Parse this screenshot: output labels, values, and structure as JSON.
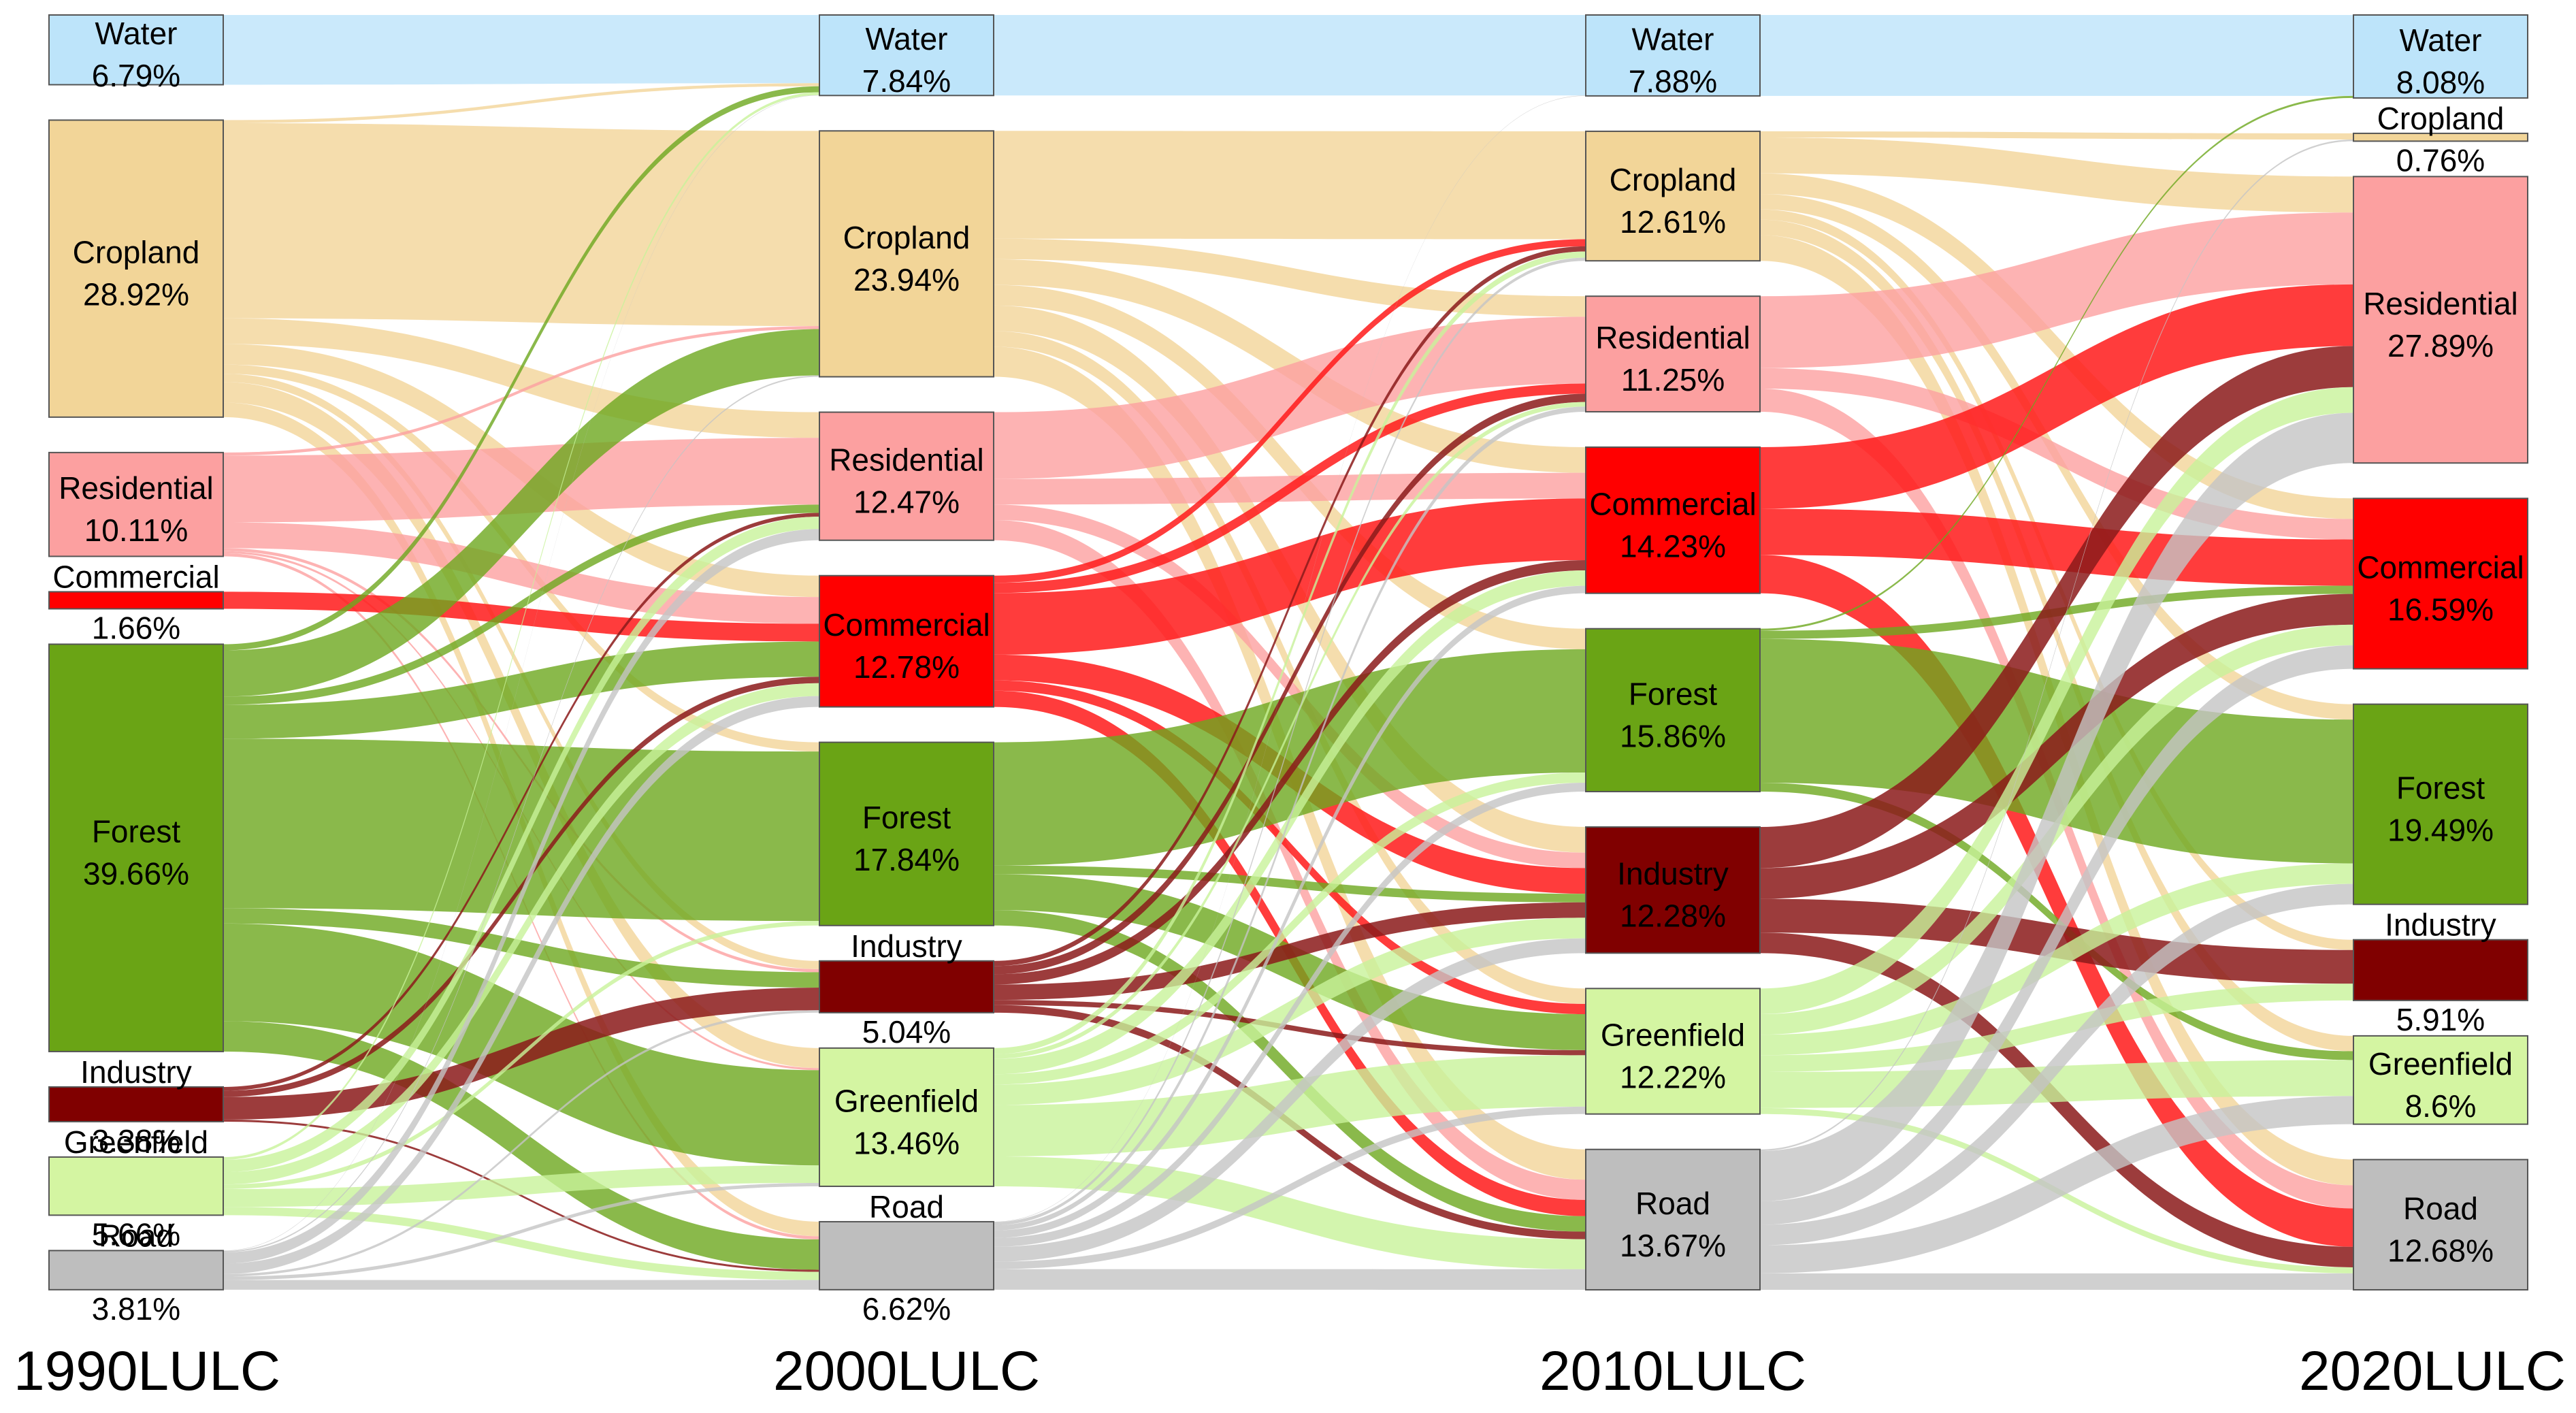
{
  "chart_data": {
    "type": "sankey",
    "title": "",
    "categories": [
      "Water",
      "Cropland",
      "Residential",
      "Commercial",
      "Forest",
      "Industry",
      "Greenfield",
      "Road"
    ],
    "colors": {
      "Water": "#BDE4FA",
      "Cropland": "#F2D598",
      "Residential": "#FCA0A0",
      "Commercial": "#FF0000",
      "Forest": "#6AA415",
      "Industry": "#800000",
      "Greenfield": "#D4F5A2",
      "Road": "#BEBEBE"
    },
    "link_colors": {
      "Water": "#BDE4FA",
      "Cropland": "#F2D598",
      "Residential": "#FCA0A0",
      "Commercial": "#FF1A1A",
      "Forest": "#6DA81E",
      "Industry": "#8B1A1A",
      "Greenfield": "#C8F29A",
      "Road": "#C4C4C4"
    },
    "years": [
      {
        "label": "1990LULC",
        "values": [
          {
            "name": "Water",
            "pct_label": "6.79%",
            "value": 6.79
          },
          {
            "name": "Cropland",
            "pct_label": "28.92%",
            "value": 28.92
          },
          {
            "name": "Residential",
            "pct_label": "10.11%",
            "value": 10.11
          },
          {
            "name": "Commercial",
            "pct_label": "1.66%",
            "value": 1.66
          },
          {
            "name": "Forest",
            "pct_label": "39.66%",
            "value": 39.66
          },
          {
            "name": "Industry",
            "pct_label": "3.38%",
            "value": 3.38
          },
          {
            "name": "Greenfield",
            "pct_label": "5.66%",
            "value": 5.66
          },
          {
            "name": "Road",
            "pct_label": "3.81%",
            "value": 3.81
          }
        ]
      },
      {
        "label": "2000LULC",
        "values": [
          {
            "name": "Water",
            "pct_label": "7.84%",
            "value": 7.84
          },
          {
            "name": "Cropland",
            "pct_label": "23.94%",
            "value": 23.94
          },
          {
            "name": "Residential",
            "pct_label": "12.47%",
            "value": 12.47
          },
          {
            "name": "Commercial",
            "pct_label": "12.78%",
            "value": 12.78
          },
          {
            "name": "Forest",
            "pct_label": "17.84%",
            "value": 17.84
          },
          {
            "name": "Industry",
            "pct_label": "5.04%",
            "value": 5.04
          },
          {
            "name": "Greenfield",
            "pct_label": "13.46%",
            "value": 13.46
          },
          {
            "name": "Road",
            "pct_label": "6.62%",
            "value": 6.62
          }
        ]
      },
      {
        "label": "2010LULC",
        "values": [
          {
            "name": "Water",
            "pct_label": "7.88%",
            "value": 7.88
          },
          {
            "name": "Cropland",
            "pct_label": "12.61%",
            "value": 12.61
          },
          {
            "name": "Residential",
            "pct_label": "11.25%",
            "value": 11.25
          },
          {
            "name": "Commercial",
            "pct_label": "14.23%",
            "value": 14.23
          },
          {
            "name": "Forest",
            "pct_label": "15.86%",
            "value": 15.86
          },
          {
            "name": "Industry",
            "pct_label": "12.28%",
            "value": 12.28
          },
          {
            "name": "Greenfield",
            "pct_label": "12.22%",
            "value": 12.22
          },
          {
            "name": "Road",
            "pct_label": "13.67%",
            "value": 13.67
          }
        ]
      },
      {
        "label": "2020LULC",
        "values": [
          {
            "name": "Water",
            "pct_label": "8.08%",
            "value": 8.08
          },
          {
            "name": "Cropland",
            "pct_label": "0.76%",
            "value": 0.76
          },
          {
            "name": "Residential",
            "pct_label": "27.89%",
            "value": 27.89
          },
          {
            "name": "Commercial",
            "pct_label": "16.59%",
            "value": 16.59
          },
          {
            "name": "Forest",
            "pct_label": "19.49%",
            "value": 19.49
          },
          {
            "name": "Industry",
            "pct_label": "5.91%",
            "value": 5.91
          },
          {
            "name": "Greenfield",
            "pct_label": "8.6%",
            "value": 8.6
          },
          {
            "name": "Road",
            "pct_label": "12.68%",
            "value": 12.68
          }
        ]
      }
    ],
    "transitions": [
      {
        "from": "1990LULC",
        "to": "2000LULC",
        "flows": [
          [
            "Water",
            "Water",
            6.7
          ],
          [
            "Cropland",
            "Water",
            0.3
          ],
          [
            "Cropland",
            "Cropland",
            19.0
          ],
          [
            "Cropland",
            "Residential",
            2.5
          ],
          [
            "Cropland",
            "Commercial",
            2.0
          ],
          [
            "Cropland",
            "Forest",
            0.9
          ],
          [
            "Cropland",
            "Industry",
            0.8
          ],
          [
            "Cropland",
            "Greenfield",
            2.0
          ],
          [
            "Cropland",
            "Road",
            1.42
          ],
          [
            "Residential",
            "Residential",
            6.5
          ],
          [
            "Residential",
            "Commercial",
            2.5
          ],
          [
            "Residential",
            "Cropland",
            0.3
          ],
          [
            "Residential",
            "Industry",
            0.3
          ],
          [
            "Residential",
            "Road",
            0.3
          ],
          [
            "Residential",
            "Greenfield",
            0.21
          ],
          [
            "Commercial",
            "Commercial",
            1.66
          ],
          [
            "Forest",
            "Water",
            0.6
          ],
          [
            "Forest",
            "Cropland",
            4.5
          ],
          [
            "Forest",
            "Residential",
            0.8
          ],
          [
            "Forest",
            "Commercial",
            3.3
          ],
          [
            "Forest",
            "Forest",
            16.5
          ],
          [
            "Forest",
            "Industry",
            1.5
          ],
          [
            "Forest",
            "Greenfield",
            9.5
          ],
          [
            "Forest",
            "Road",
            2.96
          ],
          [
            "Industry",
            "Industry",
            2.2
          ],
          [
            "Industry",
            "Commercial",
            0.6
          ],
          [
            "Industry",
            "Residential",
            0.38
          ],
          [
            "Industry",
            "Road",
            0.2
          ],
          [
            "Greenfield",
            "Greenfield",
            1.75
          ],
          [
            "Greenfield",
            "Commercial",
            1.2
          ],
          [
            "Greenfield",
            "Residential",
            1.2
          ],
          [
            "Greenfield",
            "Road",
            0.8
          ],
          [
            "Greenfield",
            "Forest",
            0.44
          ],
          [
            "Greenfield",
            "Water",
            0.27
          ],
          [
            "Road",
            "Road",
            0.94
          ],
          [
            "Road",
            "Residential",
            1.09
          ],
          [
            "Road",
            "Commercial",
            1.02
          ],
          [
            "Road",
            "Industry",
            0.24
          ],
          [
            "Road",
            "Cropland",
            0.14
          ],
          [
            "Road",
            "Water",
            0.04
          ],
          [
            "Road",
            "Forest",
            0.0
          ],
          [
            "Road",
            "Greenfield",
            0.34
          ]
        ]
      },
      {
        "from": "2000LULC",
        "to": "2010LULC",
        "flows": [
          [
            "Water",
            "Water",
            7.84
          ],
          [
            "Cropland",
            "Cropland",
            10.5
          ],
          [
            "Cropland",
            "Residential",
            2.0
          ],
          [
            "Cropland",
            "Commercial",
            2.5
          ],
          [
            "Cropland",
            "Forest",
            2.0
          ],
          [
            "Cropland",
            "Industry",
            2.5
          ],
          [
            "Cropland",
            "Greenfield",
            1.5
          ],
          [
            "Cropland",
            "Road",
            2.94
          ],
          [
            "Residential",
            "Residential",
            6.5
          ],
          [
            "Residential",
            "Commercial",
            2.5
          ],
          [
            "Residential",
            "Industry",
            1.5
          ],
          [
            "Residential",
            "Road",
            1.97
          ],
          [
            "Commercial",
            "Cropland",
            0.7
          ],
          [
            "Commercial",
            "Residential",
            1.0
          ],
          [
            "Commercial",
            "Commercial",
            6.0
          ],
          [
            "Commercial",
            "Industry",
            2.5
          ],
          [
            "Commercial",
            "Greenfield",
            1.0
          ],
          [
            "Commercial",
            "Road",
            1.58
          ],
          [
            "Forest",
            "Forest",
            12.0
          ],
          [
            "Forest",
            "Greenfield",
            3.5
          ],
          [
            "Forest",
            "Road",
            1.5
          ],
          [
            "Forest",
            "Industry",
            0.84
          ],
          [
            "Industry",
            "Cropland",
            0.5
          ],
          [
            "Industry",
            "Residential",
            0.8
          ],
          [
            "Industry",
            "Commercial",
            1.0
          ],
          [
            "Industry",
            "Industry",
            1.5
          ],
          [
            "Industry",
            "Greenfield",
            0.5
          ],
          [
            "Industry",
            "Road",
            0.74
          ],
          [
            "Greenfield",
            "Cropland",
            0.6
          ],
          [
            "Greenfield",
            "Residential",
            0.45
          ],
          [
            "Greenfield",
            "Commercial",
            1.5
          ],
          [
            "Greenfield",
            "Forest",
            1.0
          ],
          [
            "Greenfield",
            "Industry",
            2.0
          ],
          [
            "Greenfield",
            "Greenfield",
            5.0
          ],
          [
            "Greenfield",
            "Road",
            2.91
          ],
          [
            "Road",
            "Cropland",
            0.31
          ],
          [
            "Road",
            "Commercial",
            0.73
          ],
          [
            "Road",
            "Forest",
            0.86
          ],
          [
            "Road",
            "Industry",
            1.44
          ],
          [
            "Road",
            "Greenfield",
            0.72
          ],
          [
            "Road",
            "Road",
            2.0
          ],
          [
            "Road",
            "Water",
            0.04
          ],
          [
            "Road",
            "Residential",
            0.5
          ]
        ]
      },
      {
        "from": "2010LULC",
        "to": "2020LULC",
        "flows": [
          [
            "Water",
            "Water",
            7.88
          ],
          [
            "Cropland",
            "Cropland",
            0.6
          ],
          [
            "Cropland",
            "Residential",
            3.5
          ],
          [
            "Cropland",
            "Commercial",
            2.0
          ],
          [
            "Cropland",
            "Forest",
            1.5
          ],
          [
            "Cropland",
            "Industry",
            1.0
          ],
          [
            "Cropland",
            "Greenfield",
            1.5
          ],
          [
            "Cropland",
            "Road",
            2.51
          ],
          [
            "Residential",
            "Residential",
            7.0
          ],
          [
            "Residential",
            "Commercial",
            2.0
          ],
          [
            "Residential",
            "Road",
            2.25
          ],
          [
            "Commercial",
            "Residential",
            6.0
          ],
          [
            "Commercial",
            "Commercial",
            4.5
          ],
          [
            "Commercial",
            "Road",
            3.73
          ],
          [
            "Forest",
            "Forest",
            14.0
          ],
          [
            "Forest",
            "Greenfield",
            0.86
          ],
          [
            "Forest",
            "Water",
            0.2
          ],
          [
            "Forest",
            "Commercial",
            0.8
          ],
          [
            "Industry",
            "Residential",
            4.0
          ],
          [
            "Industry",
            "Commercial",
            3.0
          ],
          [
            "Industry",
            "Industry",
            3.28
          ],
          [
            "Industry",
            "Road",
            2.0
          ],
          [
            "Greenfield",
            "Residential",
            2.5
          ],
          [
            "Greenfield",
            "Commercial",
            2.0
          ],
          [
            "Greenfield",
            "Forest",
            2.0
          ],
          [
            "Greenfield",
            "Greenfield",
            3.5
          ],
          [
            "Greenfield",
            "Industry",
            1.63
          ],
          [
            "Greenfield",
            "Road",
            0.59
          ],
          [
            "Road",
            "Residential",
            4.89
          ],
          [
            "Road",
            "Commercial",
            2.29
          ],
          [
            "Road",
            "Forest",
            1.99
          ],
          [
            "Road",
            "Greenfield",
            2.74
          ],
          [
            "Road",
            "Road",
            1.6
          ],
          [
            "Road",
            "Cropland",
            0.16
          ]
        ]
      }
    ]
  }
}
